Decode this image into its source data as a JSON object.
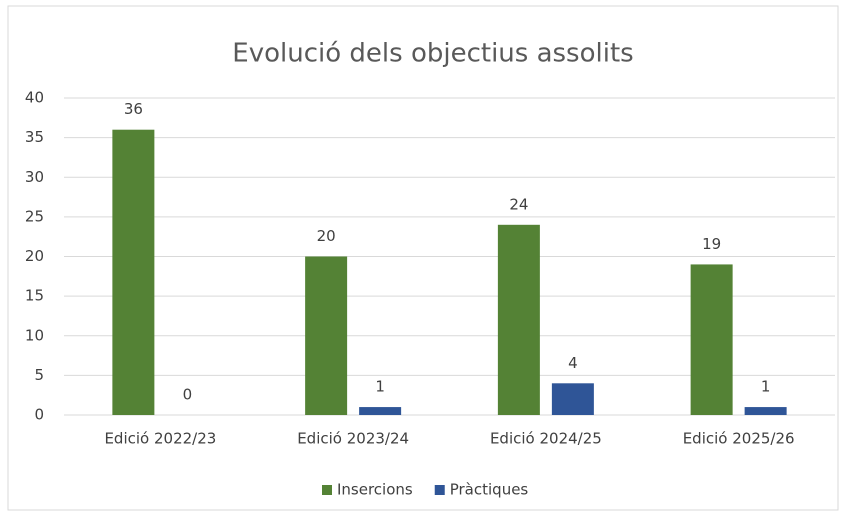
{
  "chart_data": {
    "type": "bar",
    "title": "Evolució dels objectius assolits",
    "categories": [
      "Edició 2022/23",
      "Edició 2023/24",
      "Edició 2024/25",
      "Edició 2025/26"
    ],
    "series": [
      {
        "name": "Insercions",
        "color": "#548235",
        "values": [
          36,
          20,
          24,
          19
        ]
      },
      {
        "name": "Pràctiques",
        "color": "#2f5597",
        "values": [
          0,
          1,
          4,
          1
        ]
      }
    ],
    "ylim": [
      0,
      40
    ],
    "yticks": [
      0,
      5,
      10,
      15,
      20,
      25,
      30,
      35,
      40
    ],
    "grid": true,
    "legend": "bottom"
  }
}
